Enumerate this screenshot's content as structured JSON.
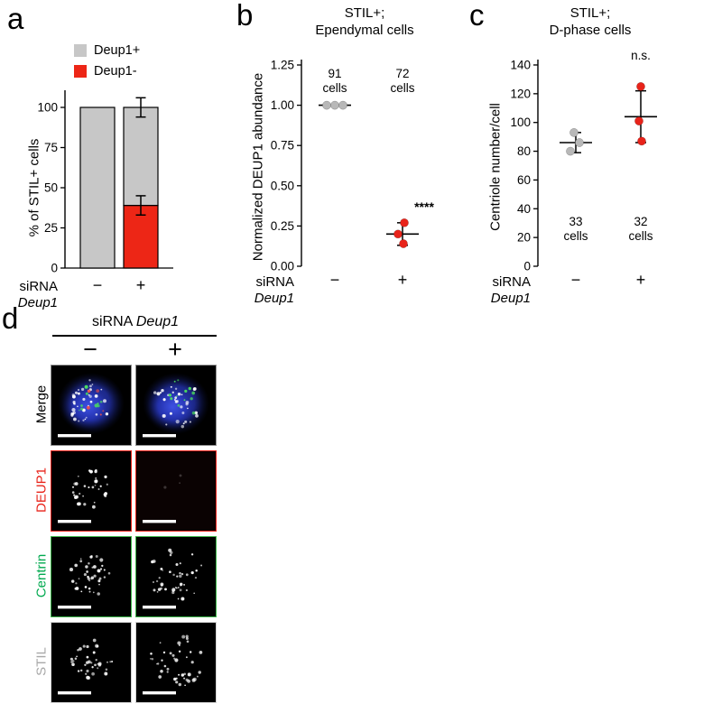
{
  "figure": {
    "background": "#ffffff",
    "panel_a": {
      "label": "a",
      "legend": [
        {
          "label": "Deup1+",
          "color": "#c7c7c7"
        },
        {
          "label": "Deup1-",
          "color": "#ed2616"
        }
      ],
      "chart_data": {
        "type": "stacked_bar",
        "ylabel": "% of STIL+ cells",
        "yticks": [
          0,
          25,
          50,
          75,
          100
        ],
        "ylim": [
          0,
          115
        ],
        "x_axis_label_line1": "siRNA",
        "x_axis_label_line2": "Deup1",
        "series_colors": {
          "deup1_plus": "#c7c7c7",
          "deup1_minus": "#ed2616"
        },
        "stacks": [
          {
            "category": "−",
            "deup1_plus": 100,
            "deup1_minus": 0,
            "total_err": 0,
            "boundary_err": 0
          },
          {
            "category": "+",
            "deup1_plus": 61,
            "deup1_minus": 39,
            "total_err": 6,
            "boundary_err": 6
          }
        ]
      }
    },
    "panel_b": {
      "label": "b",
      "title_line1": "STIL+;",
      "title_line2": "Ependymal cells",
      "chart_data": {
        "type": "scatter",
        "ylabel": "Normalized DEUP1 abundance",
        "yticks": [
          "1.25",
          "1.00",
          "0.75",
          "0.50",
          "0.25",
          "0.00"
        ],
        "ylim": [
          0,
          1.25
        ],
        "x_axis_label_line1": "siRNA",
        "x_axis_label_line2": "Deup1",
        "groups": [
          {
            "label": "−",
            "n": "91 cells",
            "color": "#b8b8b8",
            "points": [
              1.0,
              1.0,
              1.0
            ],
            "mean": 1.0,
            "err_low": 1.0,
            "err_high": 1.0
          },
          {
            "label": "+",
            "n": "72 cells",
            "color": "#e8231a",
            "points": [
              0.27,
              0.2,
              0.14
            ],
            "mean": 0.2,
            "err_low": 0.13,
            "err_high": 0.27,
            "significance": "****"
          }
        ]
      }
    },
    "panel_c": {
      "label": "c",
      "title_line1": "STIL+;",
      "title_line2": "D-phase cells",
      "chart_data": {
        "type": "scatter",
        "ylabel": "Centriole number/cell",
        "yticks": [
          0,
          20,
          40,
          60,
          80,
          100,
          120,
          140
        ],
        "ylim": [
          0,
          140
        ],
        "x_axis_label_line1": "siRNA",
        "x_axis_label_line2": "Deup1",
        "groups": [
          {
            "label": "−",
            "n": "33 cells",
            "color": "#b8b8b8",
            "points": [
              80,
              86,
              93
            ],
            "mean": 86,
            "err_low": 79,
            "err_high": 93
          },
          {
            "label": "+",
            "n": "32 cells",
            "color": "#e8231a",
            "points": [
              87,
              101,
              125
            ],
            "mean": 104,
            "err_low": 86,
            "err_high": 122,
            "significance": "n.s."
          }
        ]
      }
    },
    "panel_d": {
      "label": "d",
      "header_prefix": "siRNA",
      "header_gene": "Deup1",
      "columns": [
        "−",
        "+"
      ],
      "rows": [
        {
          "id": "merge",
          "label": "Merge",
          "label_color": "#000000",
          "border_color": "#8f8f8f",
          "images": [
            {
              "id": "merge-minus",
              "seed": 11,
              "nucleus": true,
              "white_dots": 36,
              "green_dots": 9,
              "red_dots": 5,
              "spread": 26,
              "scalebar": "#ffffff"
            },
            {
              "id": "merge-plus",
              "seed": 23,
              "nucleus": true,
              "white_dots": 32,
              "green_dots": 13,
              "red_dots": 0,
              "spread": 27,
              "green_center": [
                54,
                36
              ],
              "scalebar": "#ffffff"
            }
          ]
        },
        {
          "id": "deup1",
          "label": "DEUP1",
          "label_color": "#e8231a",
          "border_color": "#e8231a",
          "images": [
            {
              "id": "deup1-minus",
              "seed": 33,
              "white_dots": 34,
              "spread": 22,
              "scalebar": "#ffffff"
            },
            {
              "id": "deup1-plus",
              "seed": 44,
              "white_dots": 3,
              "dot_opacity": 0.2,
              "spread": 20,
              "bg": "#0a0202",
              "scalebar": "#ffffff"
            }
          ]
        },
        {
          "id": "centrin",
          "label": "Centrin",
          "label_color": "#00a94f",
          "border_color": "#3cb54a",
          "images": [
            {
              "id": "centrin-minus",
              "seed": 55,
              "white_dots": 40,
              "spread": 23,
              "scalebar": "#ffffff"
            },
            {
              "id": "centrin-plus",
              "seed": 66,
              "white_dots": 46,
              "spread": 30,
              "scalebar": "#ffffff"
            }
          ]
        },
        {
          "id": "stil",
          "label": "STIL",
          "label_color": "#a8a8a8",
          "border_color": "#d2d2d2",
          "images": [
            {
              "id": "stil-minus",
              "seed": 77,
              "white_dots": 38,
              "spread": 24,
              "scalebar": "#ffffff"
            },
            {
              "id": "stil-plus",
              "seed": 88,
              "white_dots": 44,
              "spread": 30,
              "scalebar": "#ffffff"
            }
          ]
        }
      ]
    }
  }
}
